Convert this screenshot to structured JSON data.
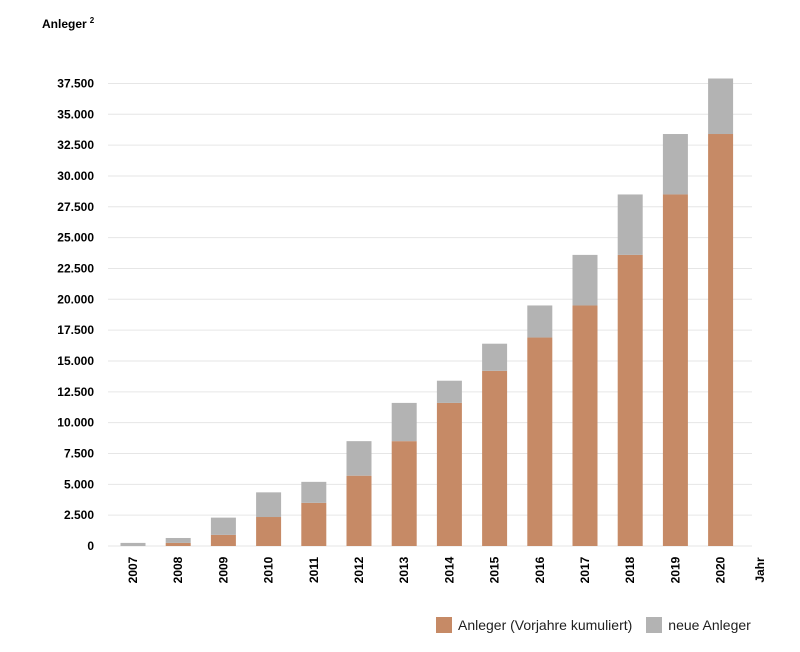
{
  "chart_data": {
    "type": "bar",
    "stacked": true,
    "ylabel": "Anleger",
    "ylabel_superscript": "2",
    "xlabel": "Jahr",
    "ylim": [
      0,
      40000
    ],
    "yticks": [
      0,
      2500,
      5000,
      7500,
      10000,
      12500,
      15000,
      17500,
      20000,
      22500,
      25000,
      27500,
      30000,
      32500,
      35000,
      37500
    ],
    "ytick_labels": [
      "0",
      "2.500",
      "5.000",
      "7.500",
      "10.000",
      "12.500",
      "15.000",
      "17.500",
      "20.000",
      "22.500",
      "25.000",
      "27.500",
      "30.000",
      "32.500",
      "35.000",
      "37.500"
    ],
    "categories": [
      "2007",
      "2008",
      "2009",
      "2010",
      "2011",
      "2012",
      "2013",
      "2014",
      "2015",
      "2016",
      "2017",
      "2018",
      "2019",
      "2020"
    ],
    "series": [
      {
        "name": "Anleger (Vorjahre kumuliert)",
        "color": "#c68a66",
        "values": [
          0,
          250,
          900,
          2350,
          3500,
          5700,
          8500,
          11600,
          14200,
          16900,
          19500,
          23600,
          28500,
          33400
        ]
      },
      {
        "name": "neue Anleger",
        "color": "#b3b3b3",
        "values": [
          250,
          400,
          1400,
          2000,
          1700,
          2800,
          3100,
          1800,
          2200,
          2600,
          4100,
          4900,
          4900,
          4500
        ]
      }
    ],
    "grid": true,
    "legend_position": "bottom-right"
  }
}
